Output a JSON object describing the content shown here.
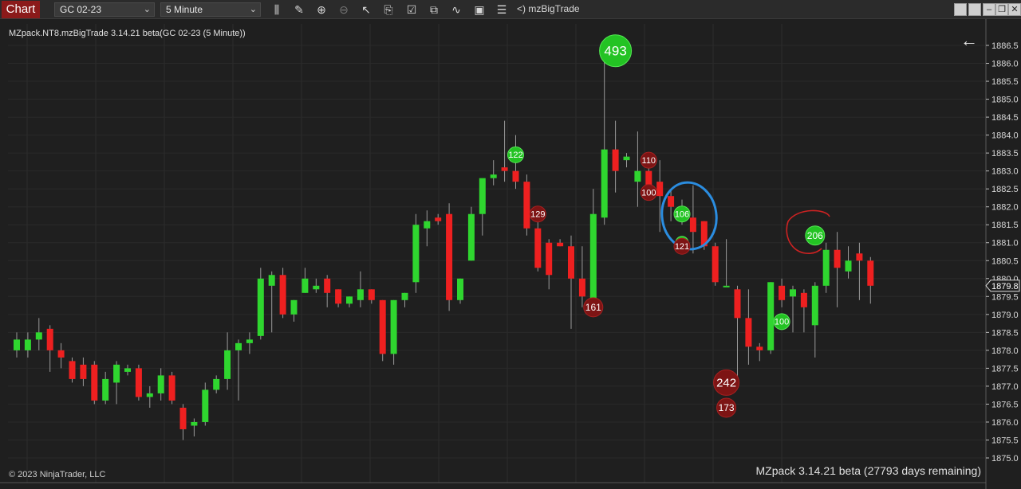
{
  "toolbar": {
    "chart_tab_label": "Chart",
    "instrument": "GC 02-23",
    "interval": "5 Minute",
    "indicator_label": "<) mzBigTrade"
  },
  "chart_header": {
    "info": "MZpack.NT8.mzBigTrade 3.14.21 beta(GC 02-23 (5 Minute))",
    "copyright": "© 2023 NinjaTrader, LLC",
    "mzpack_note": "MZpack 3.14.21 beta  (27793 days remaining)"
  },
  "colors": {
    "up": "#2fd62f",
    "down": "#ee2020",
    "background": "#1f1f1f",
    "price_marker": "#1f1f1f"
  },
  "chart_data": {
    "type": "candlestick",
    "ylim": [
      1874.9,
      1886.9
    ],
    "y_ticks": [
      1875.0,
      1875.5,
      1876.0,
      1876.5,
      1877.0,
      1877.5,
      1878.0,
      1878.5,
      1879.0,
      1879.5,
      1880.0,
      1880.5,
      1881.0,
      1881.5,
      1882.0,
      1882.5,
      1883.0,
      1883.5,
      1884.0,
      1884.5,
      1885.0,
      1885.5,
      1886.0,
      1886.5
    ],
    "last_price": 1879.8,
    "candles": [
      {
        "o": 1878.0,
        "h": 1878.5,
        "l": 1877.8,
        "c": 1878.3
      },
      {
        "o": 1878.0,
        "h": 1878.5,
        "l": 1877.8,
        "c": 1878.3
      },
      {
        "o": 1878.3,
        "h": 1878.9,
        "l": 1878.0,
        "c": 1878.5
      },
      {
        "o": 1878.6,
        "h": 1878.7,
        "l": 1877.4,
        "c": 1878.0
      },
      {
        "o": 1878.0,
        "h": 1878.2,
        "l": 1877.5,
        "c": 1877.8
      },
      {
        "o": 1877.7,
        "h": 1877.8,
        "l": 1877.1,
        "c": 1877.2
      },
      {
        "o": 1877.6,
        "h": 1877.8,
        "l": 1877.0,
        "c": 1877.2
      },
      {
        "o": 1877.6,
        "h": 1877.7,
        "l": 1876.5,
        "c": 1876.6
      },
      {
        "o": 1876.6,
        "h": 1877.4,
        "l": 1876.5,
        "c": 1877.2
      },
      {
        "o": 1877.1,
        "h": 1877.7,
        "l": 1876.5,
        "c": 1877.6
      },
      {
        "o": 1877.4,
        "h": 1877.6,
        "l": 1877.3,
        "c": 1877.5
      },
      {
        "o": 1877.5,
        "h": 1877.6,
        "l": 1876.6,
        "c": 1876.7
      },
      {
        "o": 1876.7,
        "h": 1877.0,
        "l": 1876.4,
        "c": 1876.8
      },
      {
        "o": 1876.8,
        "h": 1877.5,
        "l": 1876.6,
        "c": 1877.3
      },
      {
        "o": 1877.3,
        "h": 1877.4,
        "l": 1876.5,
        "c": 1876.6
      },
      {
        "o": 1876.4,
        "h": 1876.5,
        "l": 1875.5,
        "c": 1875.8
      },
      {
        "o": 1875.9,
        "h": 1876.1,
        "l": 1875.6,
        "c": 1876.0
      },
      {
        "o": 1876.0,
        "h": 1877.1,
        "l": 1875.9,
        "c": 1876.9
      },
      {
        "o": 1876.9,
        "h": 1877.3,
        "l": 1876.8,
        "c": 1877.2
      },
      {
        "o": 1877.2,
        "h": 1878.5,
        "l": 1876.9,
        "c": 1878.0
      },
      {
        "o": 1878.0,
        "h": 1878.3,
        "l": 1876.6,
        "c": 1878.2
      },
      {
        "o": 1878.2,
        "h": 1878.5,
        "l": 1877.9,
        "c": 1878.3
      },
      {
        "o": 1878.4,
        "h": 1880.3,
        "l": 1878.3,
        "c": 1880.0
      },
      {
        "o": 1879.8,
        "h": 1880.2,
        "l": 1878.5,
        "c": 1880.1
      },
      {
        "o": 1880.1,
        "h": 1880.3,
        "l": 1878.9,
        "c": 1879.0
      },
      {
        "o": 1879.0,
        "h": 1879.4,
        "l": 1878.8,
        "c": 1879.4
      },
      {
        "o": 1879.6,
        "h": 1880.3,
        "l": 1879.6,
        "c": 1880.0
      },
      {
        "o": 1879.7,
        "h": 1880.0,
        "l": 1879.6,
        "c": 1879.8
      },
      {
        "o": 1880.0,
        "h": 1880.1,
        "l": 1879.2,
        "c": 1879.6
      },
      {
        "o": 1879.7,
        "h": 1879.7,
        "l": 1879.2,
        "c": 1879.3
      },
      {
        "o": 1879.3,
        "h": 1879.5,
        "l": 1879.2,
        "c": 1879.5
      },
      {
        "o": 1879.4,
        "h": 1880.2,
        "l": 1879.2,
        "c": 1879.7
      },
      {
        "o": 1879.7,
        "h": 1879.7,
        "l": 1879.3,
        "c": 1879.4
      },
      {
        "o": 1879.4,
        "h": 1879.4,
        "l": 1877.7,
        "c": 1877.9
      },
      {
        "o": 1877.9,
        "h": 1879.4,
        "l": 1877.6,
        "c": 1879.4
      },
      {
        "o": 1879.4,
        "h": 1879.6,
        "l": 1879.2,
        "c": 1879.6
      },
      {
        "o": 1879.9,
        "h": 1881.8,
        "l": 1879.6,
        "c": 1881.5
      },
      {
        "o": 1881.4,
        "h": 1881.9,
        "l": 1880.9,
        "c": 1881.6
      },
      {
        "o": 1881.7,
        "h": 1881.8,
        "l": 1881.5,
        "c": 1881.6
      },
      {
        "o": 1881.8,
        "h": 1882.1,
        "l": 1879.1,
        "c": 1879.4
      },
      {
        "o": 1879.4,
        "h": 1880.0,
        "l": 1879.3,
        "c": 1880.0
      },
      {
        "o": 1880.5,
        "h": 1882.0,
        "l": 1880.5,
        "c": 1881.8
      },
      {
        "o": 1881.8,
        "h": 1882.7,
        "l": 1881.2,
        "c": 1882.8
      },
      {
        "o": 1882.8,
        "h": 1883.3,
        "l": 1882.6,
        "c": 1882.9
      },
      {
        "o": 1883.1,
        "h": 1884.4,
        "l": 1882.7,
        "c": 1883.0
      },
      {
        "o": 1883.0,
        "h": 1884.0,
        "l": 1882.5,
        "c": 1882.7
      },
      {
        "o": 1882.7,
        "h": 1882.9,
        "l": 1881.2,
        "c": 1881.4
      },
      {
        "o": 1881.4,
        "h": 1881.6,
        "l": 1880.2,
        "c": 1880.3
      },
      {
        "o": 1881.0,
        "h": 1881.1,
        "l": 1879.7,
        "c": 1880.1
      },
      {
        "o": 1881.0,
        "h": 1881.1,
        "l": 1880.9,
        "c": 1880.9
      },
      {
        "o": 1880.9,
        "h": 1881.2,
        "l": 1878.6,
        "c": 1880.0
      },
      {
        "o": 1880.0,
        "h": 1880.9,
        "l": 1879.2,
        "c": 1879.5
      },
      {
        "o": 1879.4,
        "h": 1882.5,
        "l": 1879.3,
        "c": 1881.8
      },
      {
        "o": 1881.7,
        "h": 1886.3,
        "l": 1881.5,
        "c": 1883.6
      },
      {
        "o": 1883.6,
        "h": 1884.4,
        "l": 1882.4,
        "c": 1883.0
      },
      {
        "o": 1883.3,
        "h": 1883.5,
        "l": 1883.1,
        "c": 1883.4
      },
      {
        "o": 1882.7,
        "h": 1884.1,
        "l": 1882.0,
        "c": 1883.0
      },
      {
        "o": 1883.0,
        "h": 1883.4,
        "l": 1882.3,
        "c": 1882.2
      },
      {
        "o": 1882.7,
        "h": 1883.3,
        "l": 1881.3,
        "c": 1882.3
      },
      {
        "o": 1882.3,
        "h": 1882.5,
        "l": 1881.6,
        "c": 1882.0
      },
      {
        "o": 1881.8,
        "h": 1882.2,
        "l": 1881.5,
        "c": 1881.7
      },
      {
        "o": 1881.7,
        "h": 1882.6,
        "l": 1880.7,
        "c": 1881.3
      },
      {
        "o": 1881.6,
        "h": 1881.6,
        "l": 1880.8,
        "c": 1880.9
      },
      {
        "o": 1880.9,
        "h": 1881.0,
        "l": 1879.8,
        "c": 1879.9
      },
      {
        "o": 1879.8,
        "h": 1881.1,
        "l": 1879.8,
        "c": 1879.8
      },
      {
        "o": 1879.7,
        "h": 1879.8,
        "l": 1877.0,
        "c": 1878.9
      },
      {
        "o": 1878.9,
        "h": 1879.7,
        "l": 1877.6,
        "c": 1878.1
      },
      {
        "o": 1878.1,
        "h": 1878.2,
        "l": 1877.7,
        "c": 1878.0
      },
      {
        "o": 1878.0,
        "h": 1879.9,
        "l": 1877.9,
        "c": 1879.9
      },
      {
        "o": 1879.8,
        "h": 1880.0,
        "l": 1879.2,
        "c": 1879.4
      },
      {
        "o": 1879.5,
        "h": 1879.8,
        "l": 1878.5,
        "c": 1879.7
      },
      {
        "o": 1879.6,
        "h": 1879.7,
        "l": 1878.5,
        "c": 1879.2
      },
      {
        "o": 1878.7,
        "h": 1879.9,
        "l": 1877.8,
        "c": 1879.8
      },
      {
        "o": 1879.8,
        "h": 1881.0,
        "l": 1879.6,
        "c": 1880.8
      },
      {
        "o": 1880.8,
        "h": 1881.3,
        "l": 1879.2,
        "c": 1880.3
      },
      {
        "o": 1880.2,
        "h": 1880.9,
        "l": 1880.0,
        "c": 1880.5
      },
      {
        "o": 1880.7,
        "h": 1881.0,
        "l": 1879.4,
        "c": 1880.5
      },
      {
        "o": 1880.5,
        "h": 1880.6,
        "l": 1879.3,
        "c": 1879.8
      }
    ],
    "big_trades": [
      {
        "label": "493",
        "bar": 54,
        "price": 1886.35,
        "side": "buy",
        "size": "xl"
      },
      {
        "label": "122",
        "bar": 45,
        "price": 1883.45,
        "side": "buy",
        "size": "s"
      },
      {
        "label": "129",
        "bar": 47,
        "price": 1881.8,
        "side": "sell",
        "size": "s"
      },
      {
        "label": "161",
        "bar": 52,
        "price": 1879.2,
        "side": "sell",
        "size": "m"
      },
      {
        "label": "110",
        "bar": 57,
        "price": 1883.3,
        "side": "sell",
        "size": "s"
      },
      {
        "label": "100",
        "bar": 57,
        "price": 1882.4,
        "side": "sell",
        "size": "s"
      },
      {
        "label": "106",
        "bar": 60,
        "price": 1881.8,
        "side": "buy",
        "size": "s"
      },
      {
        "label": "100",
        "bar": 60,
        "price": 1881.0,
        "side": "buy",
        "size": "xs"
      },
      {
        "label": "121",
        "bar": 60,
        "price": 1880.9,
        "side": "sell",
        "size": "s"
      },
      {
        "label": "242",
        "bar": 64,
        "price": 1877.1,
        "side": "sell",
        "size": "l"
      },
      {
        "label": "173",
        "bar": 64,
        "price": 1876.4,
        "side": "sell",
        "size": "m"
      },
      {
        "label": "100",
        "bar": 69,
        "price": 1878.8,
        "side": "buy",
        "size": "s"
      },
      {
        "label": "206",
        "bar": 72,
        "price": 1881.2,
        "side": "buy",
        "size": "m"
      }
    ]
  }
}
